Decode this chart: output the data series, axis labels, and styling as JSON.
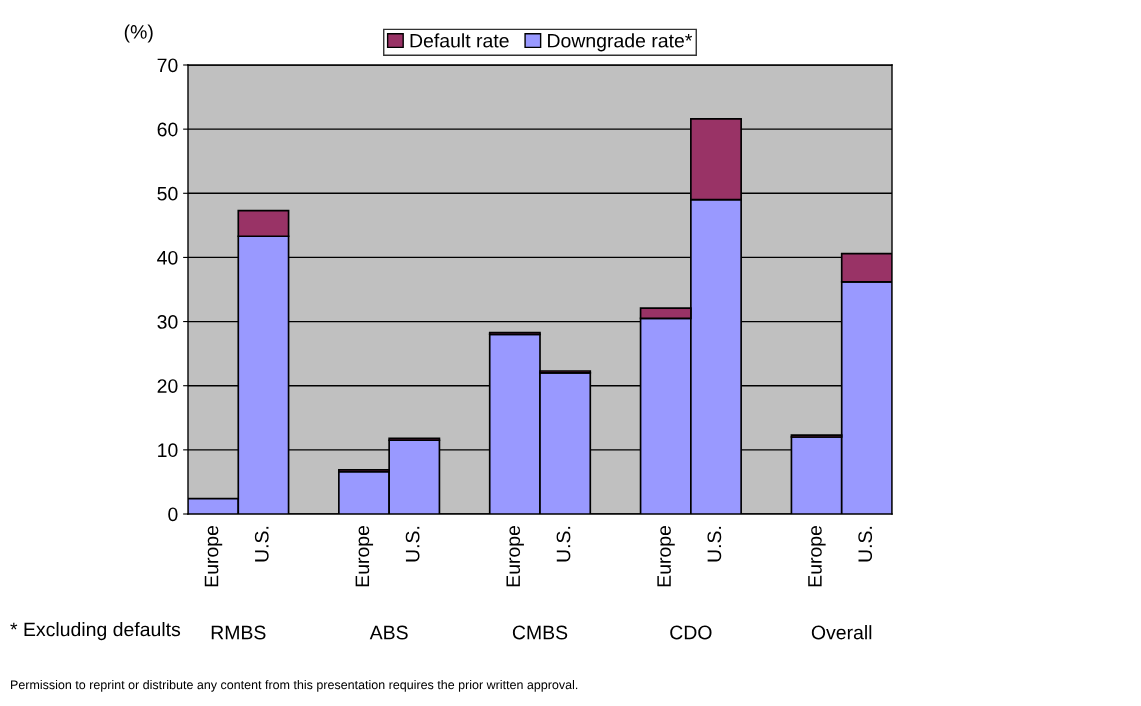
{
  "chart_data": {
    "type": "bar",
    "stacked": true,
    "ylabel": "(%)",
    "categories": [
      "Europe",
      "U.S.",
      null,
      "Europe",
      "U.S.",
      null,
      "Europe",
      "U.S.",
      null,
      "Europe",
      "U.S.",
      null,
      "Europe",
      "U.S."
    ],
    "series": [
      {
        "name": "Downgrade rate*",
        "color": "#9999ff",
        "values": [
          2.4,
          43.3,
          null,
          6.6,
          11.5,
          null,
          28.0,
          22.0,
          null,
          30.5,
          49.0,
          null,
          12.0,
          36.2
        ]
      },
      {
        "name": "Default rate",
        "color": "#993366",
        "values": [
          null,
          4.0,
          null,
          0.3,
          0.3,
          null,
          0.3,
          0.3,
          null,
          1.6,
          12.6,
          null,
          0.3,
          4.4
        ]
      }
    ],
    "ylim": [
      0,
      70
    ],
    "yticks": [
      0,
      10,
      20,
      30,
      40,
      50,
      60,
      70
    ],
    "grid": "y",
    "legend": "top",
    "annotations": [
      "RMBS",
      "ABS",
      "CMBS",
      "CDO",
      "Overall",
      "* Excluding defaults",
      "Permission to reprint or distribute any content from this presentation requires the prior written approval."
    ]
  }
}
